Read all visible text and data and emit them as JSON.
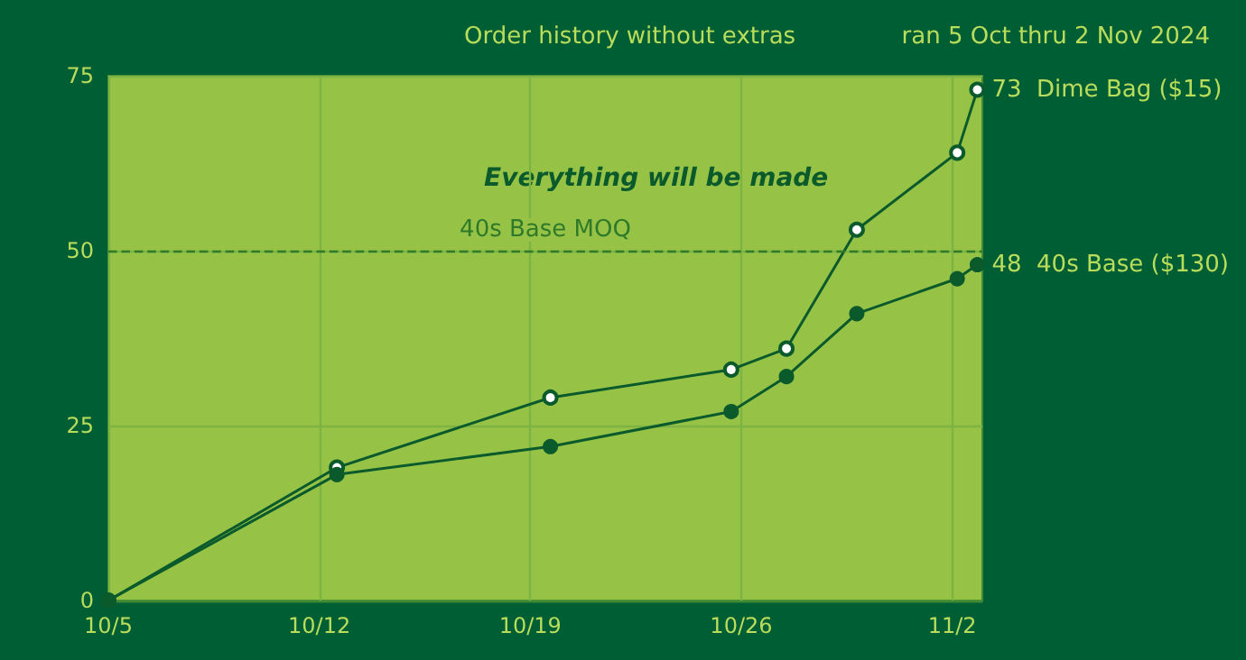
{
  "chart_data": {
    "type": "line",
    "subtitle": "Order history without extras",
    "annotations": [
      "ran 5 Oct thru 2 Nov 2024",
      "Everything will be made"
    ],
    "x": [
      "2024-10-05T00:00",
      "2024-10-12T14:00",
      "2024-10-19T16:00",
      "2024-10-25T16:00",
      "2024-10-27T12:00",
      "2024-10-29T20:00",
      "2024-11-02T04:00",
      "2024-11-02T20:00"
    ],
    "series": [
      {
        "name": "Dime Bag ($15)",
        "color": "#0b5a2c",
        "values": [
          0,
          19,
          29,
          33,
          36,
          53,
          64,
          73
        ],
        "value_labels": [
          null,
          null,
          null,
          null,
          null,
          null,
          null,
          "73"
        ]
      },
      {
        "name": "40s Base ($130)",
        "color": "#0b5a2c",
        "values": [
          0,
          18,
          22,
          27,
          32,
          41,
          46,
          48
        ],
        "value_labels": [
          null,
          null,
          null,
          null,
          null,
          null,
          null,
          "48"
        ]
      }
    ],
    "xlim": [
      "2024-10-05T00:00",
      "2024-11-03T00:00"
    ],
    "xticks": [
      {
        "value": "2024-10-05",
        "label": "10/5"
      },
      {
        "value": "2024-10-12",
        "label": "10/12"
      },
      {
        "value": "2024-10-19",
        "label": "10/19"
      },
      {
        "value": "2024-10-26",
        "label": "10/26"
      },
      {
        "value": "2024-11-02",
        "label": "11/2"
      }
    ],
    "ylim": [
      0,
      75
    ],
    "yticks": [
      0,
      25,
      50,
      75
    ],
    "ref_lines": [
      {
        "axis": "y",
        "value": 50,
        "label": "40s Base MOQ",
        "color": "#2f7a2a",
        "line_style": "dashed"
      }
    ],
    "grid": true,
    "marker": "circle",
    "line_style": "solid",
    "legend": false
  }
}
